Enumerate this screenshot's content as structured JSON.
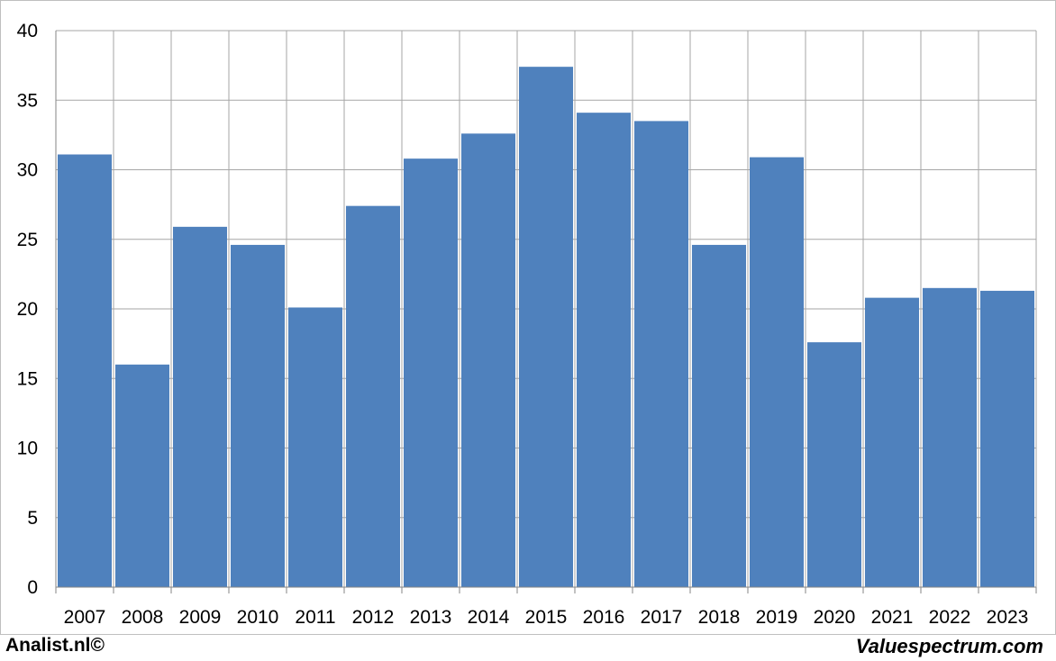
{
  "chart_data": {
    "type": "bar",
    "categories": [
      "2007",
      "2008",
      "2009",
      "2010",
      "2011",
      "2012",
      "2013",
      "2014",
      "2015",
      "2016",
      "2017",
      "2018",
      "2019",
      "2020",
      "2021",
      "2022",
      "2023"
    ],
    "values": [
      31.1,
      16.0,
      25.9,
      24.6,
      20.1,
      27.4,
      30.8,
      32.6,
      37.4,
      34.1,
      33.5,
      24.6,
      30.9,
      17.6,
      20.8,
      21.5,
      21.3
    ],
    "yticks": [
      0,
      5,
      10,
      15,
      20,
      25,
      30,
      35,
      40
    ],
    "ylim": [
      0,
      40
    ],
    "grid": true,
    "bar_color": "#4f81bd",
    "grid_color": "#a6a6a6"
  },
  "footer": {
    "left": "Analist.nl©",
    "right": "Valuespectrum.com"
  }
}
